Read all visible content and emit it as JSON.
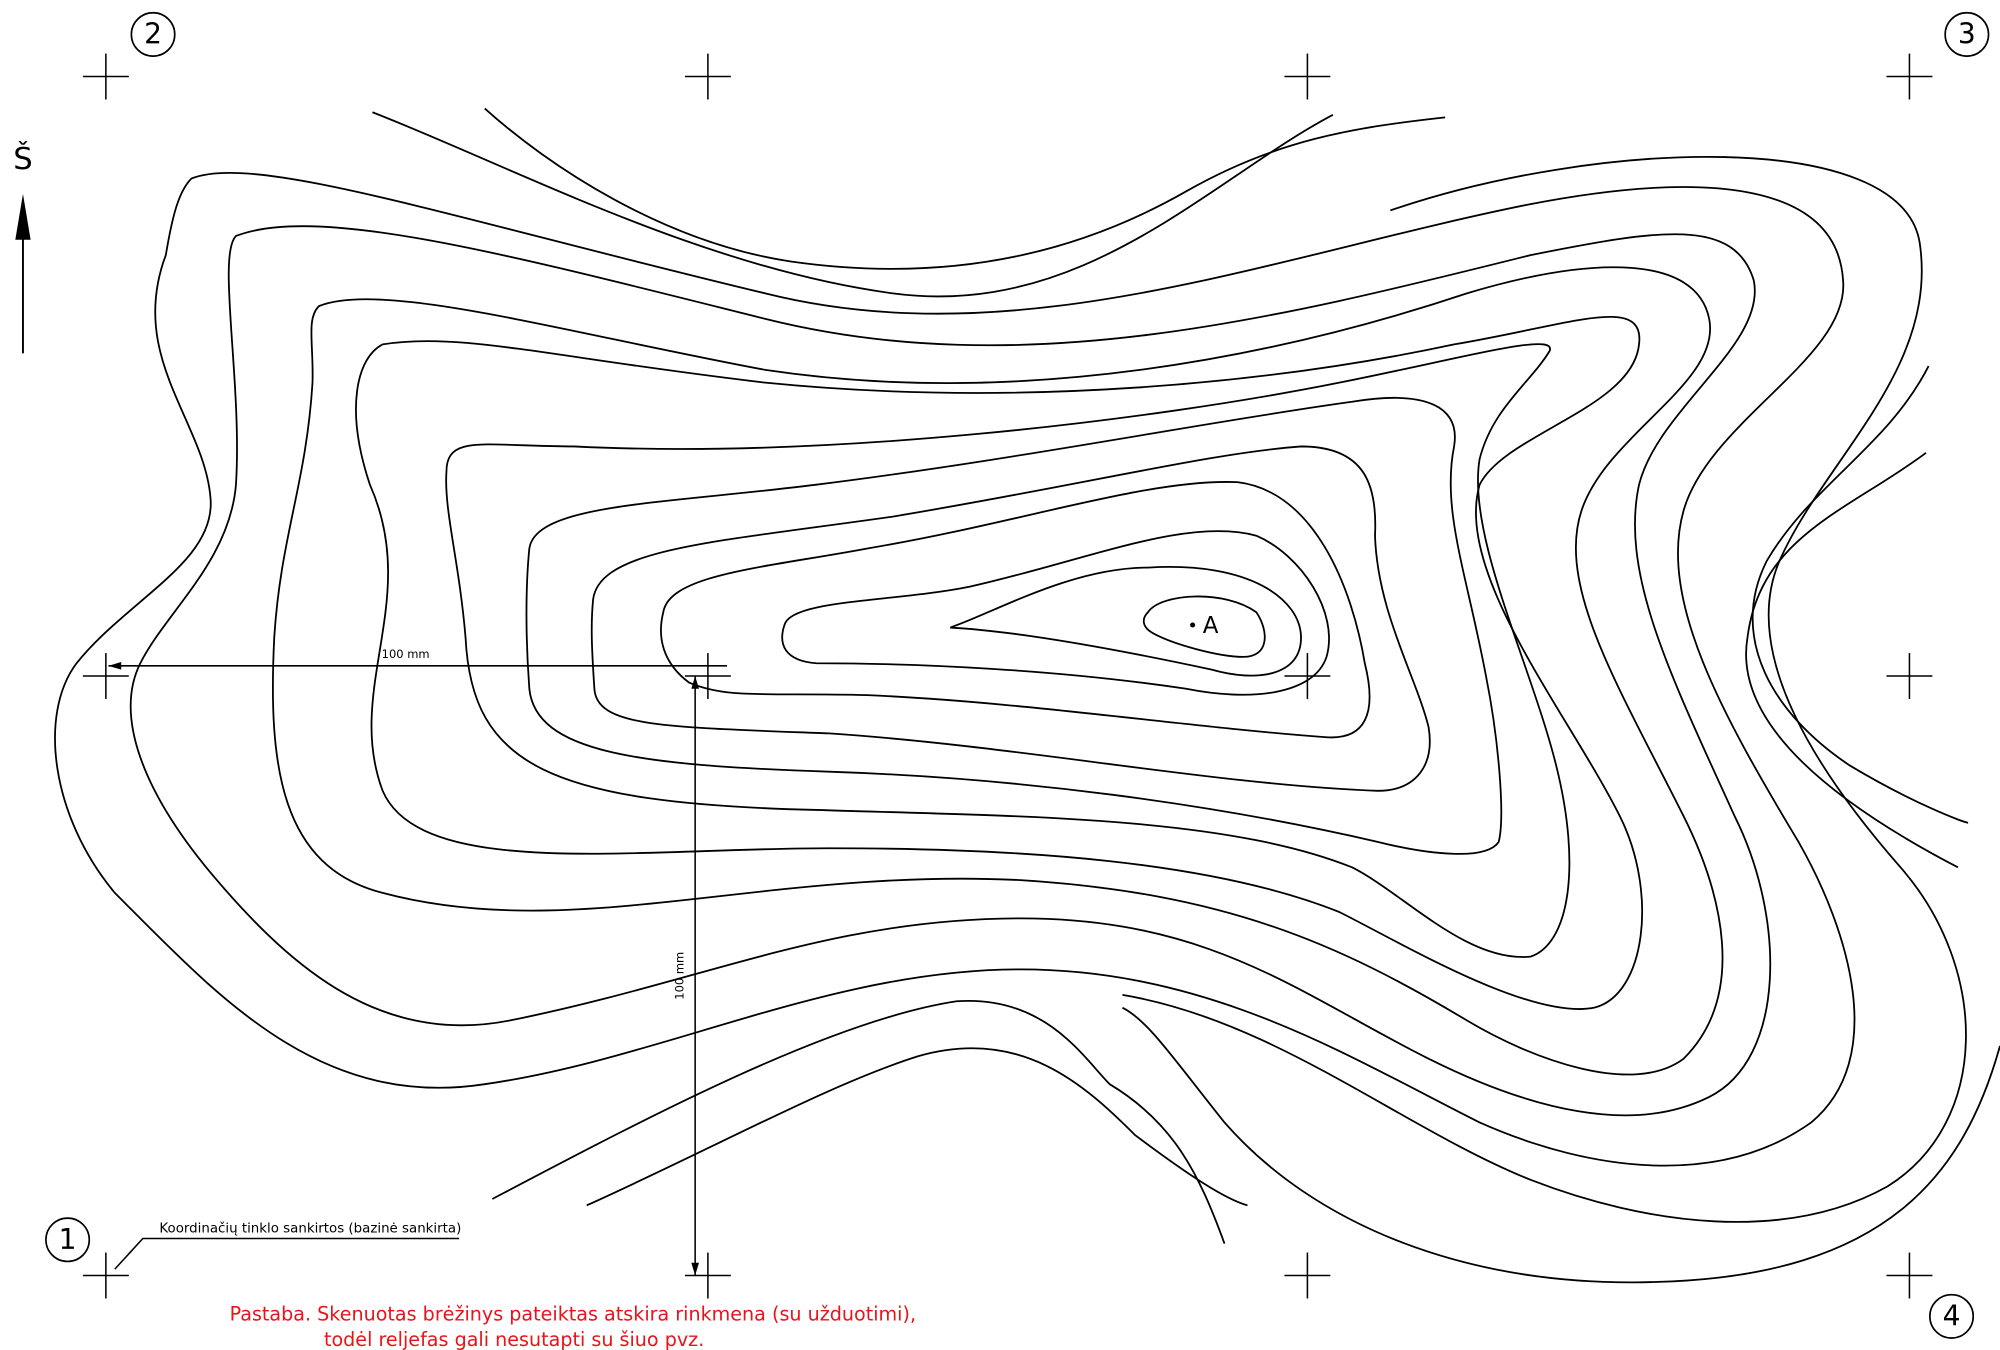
{
  "grid_labels": [
    "2",
    "3",
    "1",
    "4"
  ],
  "north": "Š",
  "dimensions": {
    "horizontal": "100 mm",
    "vertical": "100 mm"
  },
  "point": "A",
  "legend": "Koordinačių tinklo sankirtos (bazinė sankirta)",
  "note": [
    "Pastaba. Skenuotas brėžinys pateiktas atskira rinkmena (su  užduotimi),",
    "todėl reljefas gali nesutapti su šiuo pvz."
  ]
}
